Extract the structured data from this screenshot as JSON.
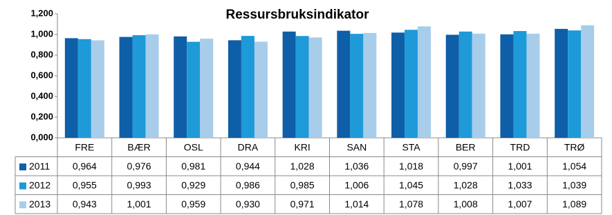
{
  "chart_data": {
    "type": "bar",
    "title": "Ressursbruksindikator",
    "categories": [
      "FRE",
      "BÆR",
      "OSL",
      "DRA",
      "KRI",
      "SAN",
      "STA",
      "BER",
      "TRD",
      "TRØ"
    ],
    "series": [
      {
        "name": "2011",
        "color": "#0f5ea8",
        "values": [
          0.964,
          0.976,
          0.981,
          0.944,
          1.028,
          1.036,
          1.018,
          0.997,
          1.001,
          1.054
        ],
        "value_labels": [
          "0,964",
          "0,976",
          "0,981",
          "0,944",
          "1,028",
          "1,036",
          "1,018",
          "0,997",
          "1,001",
          "1,054"
        ]
      },
      {
        "name": "2012",
        "color": "#1e9ad8",
        "values": [
          0.955,
          0.993,
          0.929,
          0.986,
          0.985,
          1.006,
          1.045,
          1.028,
          1.033,
          1.039
        ],
        "value_labels": [
          "0,955",
          "0,993",
          "0,929",
          "0,986",
          "0,985",
          "1,006",
          "1,045",
          "1,028",
          "1,033",
          "1,039"
        ]
      },
      {
        "name": "2013",
        "color": "#a7cdeb",
        "values": [
          0.943,
          1.001,
          0.959,
          0.93,
          0.971,
          1.014,
          1.078,
          1.008,
          1.007,
          1.089
        ],
        "value_labels": [
          "0,943",
          "1,001",
          "0,959",
          "0,930",
          "0,971",
          "1,014",
          "1,078",
          "1,008",
          "1,007",
          "1,089"
        ]
      }
    ],
    "ylim": [
      0,
      1.2
    ],
    "yticks": [
      {
        "value": 0,
        "label": "0,000"
      },
      {
        "value": 0.2,
        "label": "0,200"
      },
      {
        "value": 0.4,
        "label": "0,400"
      },
      {
        "value": 0.6,
        "label": "0,600"
      },
      {
        "value": 0.8,
        "label": "0,800"
      },
      {
        "value": 1.0,
        "label": "1,000"
      },
      {
        "value": 1.2,
        "label": "1,200"
      }
    ],
    "grid": false
  }
}
